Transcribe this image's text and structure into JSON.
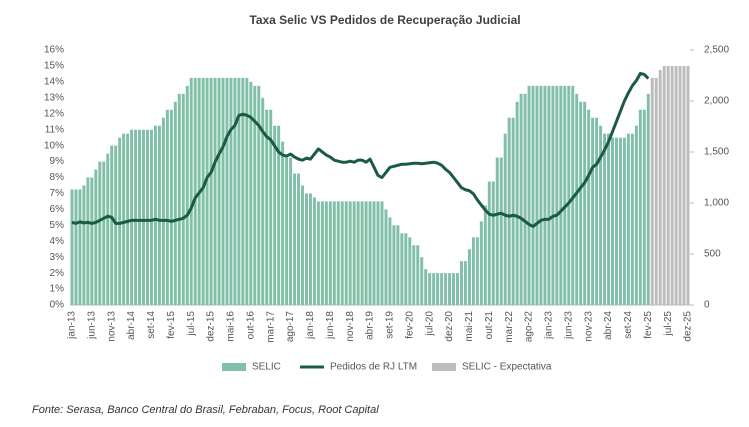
{
  "chart_data": {
    "type": "bar",
    "title": "Taxa Selic VS Pedidos de Recuperação Judicial",
    "source": "Fonte: Serasa, Banco Central do Brasil, Febraban, Focus, Root Capital",
    "categories": [
      "jan-13",
      null,
      null,
      null,
      null,
      "jun-13",
      null,
      null,
      null,
      null,
      "nov-13",
      null,
      null,
      null,
      null,
      "abr-14",
      null,
      null,
      null,
      null,
      "set-14",
      null,
      null,
      null,
      null,
      "fev-15",
      null,
      null,
      null,
      null,
      "jul-15",
      null,
      null,
      null,
      null,
      "dez-15",
      null,
      null,
      null,
      null,
      "mai-16",
      null,
      null,
      null,
      null,
      "out-16",
      null,
      null,
      null,
      null,
      "mar-17",
      null,
      null,
      null,
      null,
      "ago-17",
      null,
      null,
      null,
      null,
      "jan-18",
      null,
      null,
      null,
      null,
      "jun-18",
      null,
      null,
      null,
      null,
      "nov-18",
      null,
      null,
      null,
      null,
      "abr-19",
      null,
      null,
      null,
      null,
      "set-19",
      null,
      null,
      null,
      null,
      "fev-20",
      null,
      null,
      null,
      null,
      "jul-20",
      null,
      null,
      null,
      null,
      "dez-20",
      null,
      null,
      null,
      null,
      "mai-21",
      null,
      null,
      null,
      null,
      "out-21",
      null,
      null,
      null,
      null,
      "mar-22",
      null,
      null,
      null,
      null,
      "ago-22",
      null,
      null,
      null,
      null,
      "jan-23",
      null,
      null,
      null,
      null,
      "jun-23",
      null,
      null,
      null,
      null,
      "nov-23",
      null,
      null,
      null,
      null,
      "abr-24",
      null,
      null,
      null,
      null,
      "set-24",
      null,
      null,
      null,
      null,
      "fev-25",
      null,
      null,
      null,
      null,
      "jul-25",
      null,
      null,
      null,
      null,
      "dez-25"
    ],
    "series": [
      {
        "name": "SELIC",
        "type": "bar",
        "color": "#82bfa8",
        "values": [
          7.25,
          7.25,
          7.25,
          7.5,
          8,
          8,
          8.5,
          9,
          9,
          9.5,
          10,
          10,
          10.5,
          10.75,
          10.75,
          11,
          11,
          11,
          11,
          11,
          11,
          11.25,
          11.25,
          11.75,
          12.25,
          12.25,
          12.75,
          13.25,
          13.25,
          13.75,
          14.25,
          14.25,
          14.25,
          14.25,
          14.25,
          14.25,
          14.25,
          14.25,
          14.25,
          14.25,
          14.25,
          14.25,
          14.25,
          14.25,
          14.25,
          14,
          13.75,
          13.75,
          13,
          12.25,
          12.25,
          11.25,
          11.25,
          10.25,
          9.25,
          9.25,
          8.25,
          8.25,
          7.5,
          7,
          7,
          6.75,
          6.5,
          6.5,
          6.5,
          6.5,
          6.5,
          6.5,
          6.5,
          6.5,
          6.5,
          6.5,
          6.5,
          6.5,
          6.5,
          6.5,
          6.5,
          6.5,
          6.5,
          6,
          5.5,
          5,
          5,
          4.5,
          4.5,
          4.25,
          3.75,
          3.75,
          3,
          2.25,
          2,
          2,
          2,
          2,
          2,
          2,
          2,
          2,
          2.75,
          2.75,
          3.5,
          4.25,
          4.25,
          5.25,
          6.25,
          7.75,
          7.75,
          9.25,
          9.25,
          10.75,
          11.75,
          11.75,
          12.75,
          13.25,
          13.25,
          13.75,
          13.75,
          13.75,
          13.75,
          13.75,
          13.75,
          13.75,
          13.75,
          13.75,
          13.75,
          13.75,
          13.75,
          13.25,
          12.75,
          12.75,
          12.25,
          11.75,
          11.75,
          11.25,
          10.75,
          10.75,
          10.5,
          10.5,
          10.5,
          10.5,
          10.75,
          10.75,
          11.25,
          12.25,
          12.25,
          13.25,
          null,
          null,
          null,
          null,
          null,
          null,
          null,
          null,
          null,
          null
        ]
      },
      {
        "name": "Pedidos de RJ LTM",
        "type": "line",
        "axis": "y2",
        "color": "#1b5b43",
        "values": [
          810,
          800,
          815,
          805,
          810,
          800,
          810,
          830,
          850,
          870,
          860,
          800,
          800,
          810,
          820,
          830,
          830,
          830,
          830,
          830,
          830,
          840,
          830,
          830,
          830,
          820,
          830,
          840,
          850,
          880,
          950,
          1050,
          1100,
          1150,
          1250,
          1300,
          1400,
          1480,
          1550,
          1650,
          1720,
          1760,
          1860,
          1870,
          1860,
          1840,
          1800,
          1760,
          1700,
          1650,
          1620,
          1560,
          1500,
          1470,
          1460,
          1480,
          1450,
          1430,
          1420,
          1440,
          1430,
          1480,
          1530,
          1500,
          1470,
          1450,
          1420,
          1410,
          1400,
          1400,
          1410,
          1400,
          1420,
          1420,
          1400,
          1430,
          1350,
          1270,
          1250,
          1300,
          1350,
          1360,
          1370,
          1380,
          1380,
          1385,
          1390,
          1390,
          1385,
          1390,
          1395,
          1400,
          1390,
          1370,
          1330,
          1300,
          1250,
          1200,
          1150,
          1130,
          1120,
          1090,
          1030,
          980,
          930,
          890,
          880,
          890,
          900,
          880,
          870,
          880,
          870,
          850,
          820,
          790,
          770,
          800,
          830,
          840,
          840,
          870,
          880,
          920,
          960,
          1000,
          1050,
          1100,
          1150,
          1200,
          1270,
          1350,
          1380,
          1450,
          1520,
          1600,
          1700,
          1800,
          1900,
          2000,
          2080,
          2150,
          2200,
          2270,
          2260,
          2220,
          null,
          null,
          null,
          null,
          null,
          null,
          null,
          null,
          null,
          null
        ]
      },
      {
        "name": "SELIC - Expectativa",
        "type": "bar",
        "color": "#bcbcbc",
        "values": [
          null,
          null,
          null,
          null,
          null,
          null,
          null,
          null,
          null,
          null,
          null,
          null,
          null,
          null,
          null,
          null,
          null,
          null,
          null,
          null,
          null,
          null,
          null,
          null,
          null,
          null,
          null,
          null,
          null,
          null,
          null,
          null,
          null,
          null,
          null,
          null,
          null,
          null,
          null,
          null,
          null,
          null,
          null,
          null,
          null,
          null,
          null,
          null,
          null,
          null,
          null,
          null,
          null,
          null,
          null,
          null,
          null,
          null,
          null,
          null,
          null,
          null,
          null,
          null,
          null,
          null,
          null,
          null,
          null,
          null,
          null,
          null,
          null,
          null,
          null,
          null,
          null,
          null,
          null,
          null,
          null,
          null,
          null,
          null,
          null,
          null,
          null,
          null,
          null,
          null,
          null,
          null,
          null,
          null,
          null,
          null,
          null,
          null,
          null,
          null,
          null,
          null,
          null,
          null,
          null,
          null,
          null,
          null,
          null,
          null,
          null,
          null,
          null,
          null,
          null,
          null,
          null,
          null,
          null,
          null,
          null,
          null,
          null,
          null,
          null,
          null,
          null,
          null,
          null,
          null,
          null,
          null,
          null,
          null,
          null,
          null,
          null,
          null,
          null,
          null,
          null,
          null,
          null,
          null,
          null,
          null,
          14.25,
          14.25,
          14.75,
          15,
          15,
          15,
          15,
          15,
          15,
          15
        ]
      }
    ],
    "ylim": [
      0,
      16
    ],
    "yticks": [
      {
        "value": 0,
        "label": "0%"
      },
      {
        "value": 1,
        "label": "1%"
      },
      {
        "value": 2,
        "label": "2%"
      },
      {
        "value": 3,
        "label": "3%"
      },
      {
        "value": 4,
        "label": "4%"
      },
      {
        "value": 5,
        "label": "5%"
      },
      {
        "value": 6,
        "label": "6%"
      },
      {
        "value": 7,
        "label": "7%"
      },
      {
        "value": 8,
        "label": "8%"
      },
      {
        "value": 9,
        "label": "9%"
      },
      {
        "value": 10,
        "label": "10%"
      },
      {
        "value": 11,
        "label": "11%"
      },
      {
        "value": 12,
        "label": "12%"
      },
      {
        "value": 13,
        "label": "13%"
      },
      {
        "value": 14,
        "label": "14%"
      },
      {
        "value": 15,
        "label": "15%"
      },
      {
        "value": 16,
        "label": "16%"
      }
    ],
    "y2lim": [
      0,
      2500
    ],
    "y2ticks": [
      0,
      500,
      {
        "value": 1000,
        "label": "1,000"
      },
      {
        "value": 1500,
        "label": "1,500"
      },
      {
        "value": 2000,
        "label": "2,000"
      },
      {
        "value": 2500,
        "label": "2,500"
      }
    ]
  }
}
